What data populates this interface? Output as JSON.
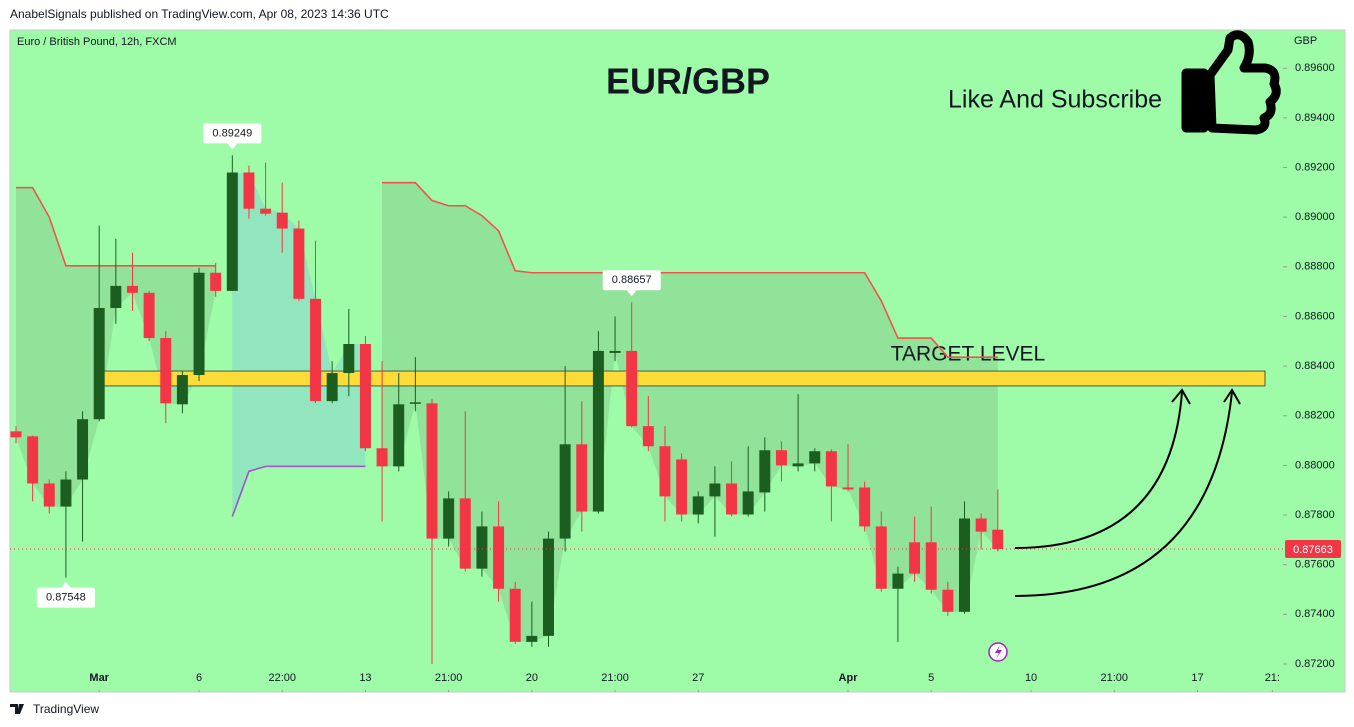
{
  "header": "AnabelSignals published on TradingView.com, Apr 08, 2023 14:36 UTC",
  "footer": "TradingView",
  "chart_data": {
    "type": "candlestick",
    "subtitle": "Euro / British Pound, 12h, FXCM",
    "title": "EUR/GBP",
    "callout": "Like And Subscribe",
    "unit": "GBP",
    "up_color": "#1b5e20",
    "down_color": "#f23645",
    "xlim": [
      -0.36,
      76.14
    ],
    "xticks": [
      {
        "value": 5,
        "label": "Mar"
      },
      {
        "value": 11,
        "label": "6"
      },
      {
        "value": 16,
        "label": "22:00"
      },
      {
        "value": 21,
        "label": "13"
      },
      {
        "value": 26,
        "label": "21:00"
      },
      {
        "value": 31,
        "label": "20"
      },
      {
        "value": 36,
        "label": "21:00"
      },
      {
        "value": 41,
        "label": "27"
      },
      {
        "value": 50,
        "label": "Apr"
      },
      {
        "value": 55,
        "label": "5"
      },
      {
        "value": 61,
        "label": "10"
      },
      {
        "value": 66,
        "label": "21:00"
      },
      {
        "value": 71,
        "label": "17"
      },
      {
        "value": 75.5,
        "label": "21:"
      }
    ],
    "ylim": [
      0.87087,
      0.89754
    ],
    "yticks": [
      {
        "value": 0.872,
        "label": "0.87200"
      },
      {
        "value": 0.874,
        "label": "0.87400"
      },
      {
        "value": 0.876,
        "label": "0.87600"
      },
      {
        "value": 0.878,
        "label": "0.87800"
      },
      {
        "value": 0.88,
        "label": "0.88000"
      },
      {
        "value": 0.882,
        "label": "0.88200"
      },
      {
        "value": 0.884,
        "label": "0.88400"
      },
      {
        "value": 0.886,
        "label": "0.88600"
      },
      {
        "value": 0.888,
        "label": "0.88800"
      },
      {
        "value": 0.89,
        "label": "0.89000"
      },
      {
        "value": 0.892,
        "label": "0.89200"
      },
      {
        "value": 0.894,
        "label": "0.89400"
      },
      {
        "value": 0.896,
        "label": "0.89600"
      }
    ],
    "open": [
      0.88137,
      0.88117,
      0.87927,
      0.87834,
      0.87943,
      0.88186,
      0.88634,
      0.88723,
      0.88695,
      0.88513,
      0.88246,
      0.88364,
      0.88776,
      0.88703,
      0.8918,
      0.89034,
      0.89018,
      0.88954,
      0.88671,
      0.88259,
      0.88372,
      0.88489,
      0.88069,
      0.87996,
      0.8825,
      0.8825,
      0.87705,
      0.87867,
      0.87584,
      0.87754,
      0.87503,
      0.87289,
      0.87313,
      0.87705,
      0.88085,
      0.87814,
      0.88453,
      0.88461,
      0.88158,
      0.88077,
      0.88024,
      0.87802,
      0.87875,
      0.87927,
      0.87802,
      0.87891,
      0.88061,
      0.87996,
      0.88008,
      0.88057,
      0.87911,
      0.87911,
      0.87754,
      0.87503,
      0.8769,
      0.8769,
      0.87499,
      0.8741,
      0.87786,
      0.87741
    ],
    "high": [
      0.88158,
      0.8812,
      0.87943,
      0.87976,
      0.88218,
      0.88966,
      0.88913,
      0.88857,
      0.88703,
      0.88541,
      0.8838,
      0.88796,
      0.88816,
      0.89249,
      0.89208,
      0.8922,
      0.89139,
      0.88986,
      0.88905,
      0.8842,
      0.8863,
      0.88521,
      0.8842,
      0.88372,
      0.88436,
      0.88267,
      0.87895,
      0.88218,
      0.87814,
      0.87855,
      0.87531,
      0.87451,
      0.87733,
      0.884,
      0.88259,
      0.88541,
      0.886,
      0.88657,
      0.88279,
      0.88158,
      0.88048,
      0.87895,
      0.87996,
      0.88016,
      0.88077,
      0.88113,
      0.88097,
      0.88287,
      0.88069,
      0.88065,
      0.88085,
      0.87935,
      0.87814,
      0.87592,
      0.87794,
      0.87834,
      0.87531,
      0.87855,
      0.87806,
      0.87903
    ],
    "low": [
      0.88089,
      0.87855,
      0.87806,
      0.87548,
      0.87693,
      0.88178,
      0.8857,
      0.88622,
      0.88501,
      0.8817,
      0.8821,
      0.8834,
      0.88679,
      0.88703,
      0.88994,
      0.89006,
      0.88857,
      0.88663,
      0.88251,
      0.88251,
      0.88279,
      0.88057,
      0.87774,
      0.87976,
      0.88218,
      0.872,
      0.87673,
      0.87572,
      0.87552,
      0.87451,
      0.87281,
      0.87269,
      0.87269,
      0.87653,
      0.87733,
      0.87806,
      0.8842,
      0.88153,
      0.88057,
      0.87774,
      0.87774,
      0.87766,
      0.87713,
      0.87794,
      0.87794,
      0.87814,
      0.87935,
      0.87976,
      0.87976,
      0.87774,
      0.87895,
      0.87733,
      0.87491,
      0.87289,
      0.87531,
      0.87483,
      0.87394,
      0.87402,
      0.87661,
      0.87653
    ],
    "close": [
      0.88113,
      0.87927,
      0.87834,
      0.87943,
      0.88186,
      0.88634,
      0.88723,
      0.88695,
      0.88513,
      0.8825,
      0.88364,
      0.88776,
      0.88703,
      0.8918,
      0.89034,
      0.89014,
      0.88954,
      0.88671,
      0.88259,
      0.88372,
      0.88489,
      0.88069,
      0.87996,
      0.88246,
      0.88254,
      0.87705,
      0.87867,
      0.87584,
      0.87754,
      0.87503,
      0.87289,
      0.87313,
      0.87705,
      0.88085,
      0.87814,
      0.88461,
      0.88461,
      0.88158,
      0.88077,
      0.87875,
      0.87802,
      0.87875,
      0.87927,
      0.87802,
      0.87895,
      0.88061,
      0.88,
      0.88008,
      0.88057,
      0.87915,
      0.87903,
      0.87754,
      0.87503,
      0.87564,
      0.87564,
      0.87499,
      0.8741,
      0.87786,
      0.87733,
      0.87663
    ],
    "high_labels": [
      null,
      null,
      null,
      null,
      null,
      null,
      null,
      null,
      null,
      null,
      null,
      null,
      null,
      "0.89249",
      null,
      null,
      null,
      null,
      null,
      null,
      null,
      null,
      null,
      null,
      null,
      null,
      null,
      null,
      null,
      null,
      null,
      null,
      null,
      null,
      null,
      null,
      null,
      "0.88657",
      null,
      null,
      null,
      null,
      null,
      null,
      null,
      null,
      null,
      null,
      null,
      null,
      null,
      null,
      null,
      null,
      null,
      null,
      null,
      null,
      null,
      null
    ],
    "low_labels": [
      null,
      null,
      null,
      "0.87548",
      null,
      null,
      null,
      null,
      null,
      null,
      null,
      null,
      null,
      null,
      null,
      null,
      null,
      null,
      null,
      null,
      null,
      null,
      null,
      null,
      null,
      null,
      null,
      null,
      null,
      null,
      null,
      null,
      null,
      null,
      null,
      null,
      null,
      null,
      null,
      null,
      null,
      null,
      null,
      null,
      null,
      null,
      null,
      null,
      null,
      null,
      null,
      null,
      null,
      null,
      null,
      null,
      null,
      null,
      null,
      null
    ],
    "upper_line": {
      "color": "#f0524f",
      "values": [
        0.89119,
        0.89119,
        0.89,
        0.88804,
        0.88804,
        0.88804,
        0.88804,
        0.88804,
        0.88804,
        0.88804,
        0.88804,
        0.88804,
        0.88804,
        null,
        null,
        null,
        null,
        null,
        null,
        null,
        null,
        null,
        0.89139,
        0.89139,
        0.89139,
        0.89067,
        0.89046,
        0.89046,
        0.89006,
        0.88945,
        0.88784,
        0.88776,
        0.88776,
        0.88776,
        0.88776,
        0.88776,
        0.88776,
        0.88776,
        0.88776,
        0.88776,
        0.88776,
        0.88776,
        0.88776,
        0.88776,
        0.88776,
        0.88776,
        0.88776,
        0.88776,
        0.88776,
        0.88776,
        0.88776,
        0.88776,
        0.88663,
        0.88513,
        0.88513,
        0.88513,
        0.88436,
        0.88436,
        0.88436,
        0.88436
      ]
    },
    "lower_line": {
      "color": "#a052c8",
      "values": [
        null,
        null,
        null,
        null,
        null,
        null,
        null,
        null,
        null,
        null,
        null,
        null,
        null,
        0.87794,
        0.87976,
        0.87996,
        0.87996,
        0.87996,
        0.87996,
        0.87996,
        0.87996,
        0.87996,
        null,
        null,
        null,
        null,
        null,
        null,
        null,
        null,
        null,
        null,
        null,
        null,
        null,
        null,
        null,
        null,
        null,
        null,
        null,
        null,
        null,
        null,
        null,
        null,
        null,
        null,
        null,
        null,
        null,
        null,
        null,
        null,
        null,
        null,
        null,
        null,
        null,
        null
      ]
    },
    "target": {
      "label": "TARGET LEVEL",
      "low": 0.8832,
      "high": 0.8838,
      "color": "#fddc3a"
    }
  }
}
